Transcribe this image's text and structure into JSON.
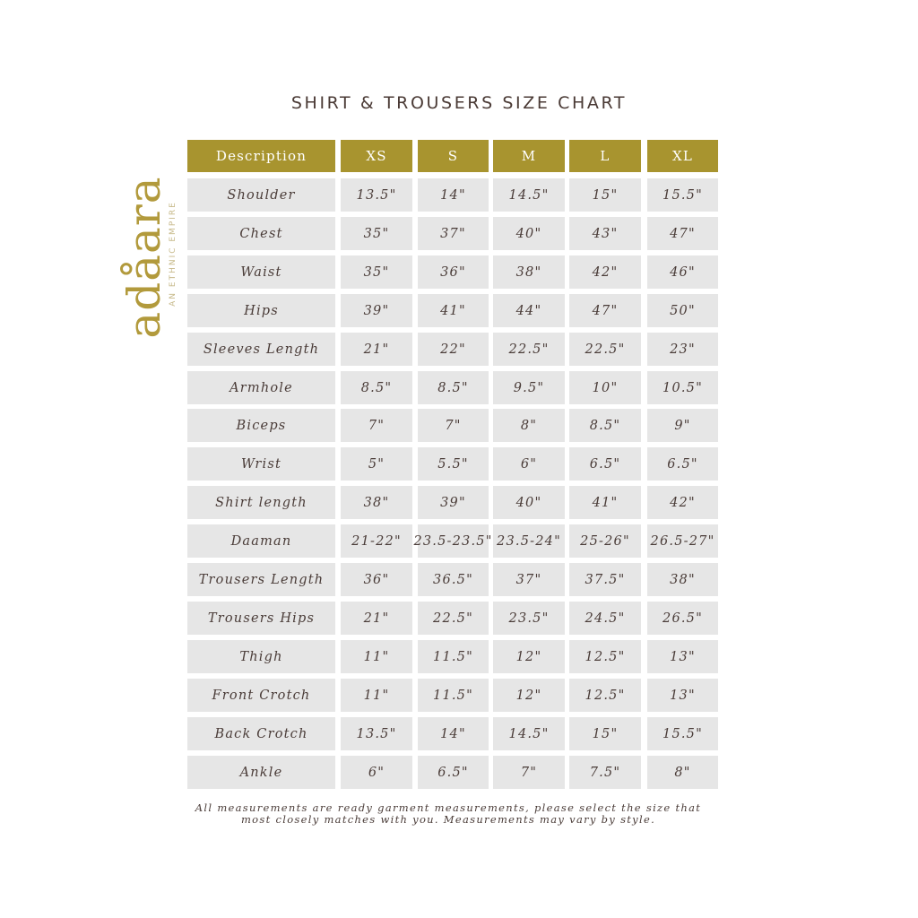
{
  "title": "SHIRT & TROUSERS SIZE CHART",
  "logo": {
    "word": "adåara",
    "tagline": "AN ETHNIC EMPIRE"
  },
  "colors": {
    "header_bg": "#a8942f",
    "cell_bg": "#e6e6e6",
    "text": "#4a3c38",
    "logo": "#b29a3c"
  },
  "table": {
    "headers": [
      "Description",
      "XS",
      "S",
      "M",
      "L",
      "XL"
    ],
    "rows": [
      [
        "Shoulder",
        "13.5\"",
        "14\"",
        "14.5\"",
        "15\"",
        "15.5\""
      ],
      [
        "Chest",
        "35\"",
        "37\"",
        "40\"",
        "43\"",
        "47\""
      ],
      [
        "Waist",
        "35\"",
        "36\"",
        "38\"",
        "42\"",
        "46\""
      ],
      [
        "Hips",
        "39\"",
        "41\"",
        "44\"",
        "47\"",
        "50\""
      ],
      [
        "Sleeves Length",
        "21\"",
        "22\"",
        "22.5\"",
        "22.5\"",
        "23\""
      ],
      [
        "Armhole",
        "8.5\"",
        "8.5\"",
        "9.5\"",
        "10\"",
        "10.5\""
      ],
      [
        "Biceps",
        "7\"",
        "7\"",
        "8\"",
        "8.5\"",
        "9\""
      ],
      [
        "Wrist",
        "5\"",
        "5.5\"",
        "6\"",
        "6.5\"",
        "6.5\""
      ],
      [
        "Shirt length",
        "38\"",
        "39\"",
        "40\"",
        "41\"",
        "42\""
      ],
      [
        "Daaman",
        "21-22\"",
        "23.5-23.5\"",
        "23.5-24\"",
        "25-26\"",
        "26.5-27\""
      ],
      [
        "Trousers Length",
        "36\"",
        "36.5\"",
        "37\"",
        "37.5\"",
        "38\""
      ],
      [
        "Trousers Hips",
        "21\"",
        "22.5\"",
        "23.5\"",
        "24.5\"",
        "26.5\""
      ],
      [
        "Thigh",
        "11\"",
        "11.5\"",
        "12\"",
        "12.5\"",
        "13\""
      ],
      [
        "Front Crotch",
        "11\"",
        "11.5\"",
        "12\"",
        "12.5\"",
        "13\""
      ],
      [
        "Back Crotch",
        "13.5\"",
        "14\"",
        "14.5\"",
        "15\"",
        "15.5\""
      ],
      [
        "Ankle",
        "6\"",
        "6.5\"",
        "7\"",
        "7.5\"",
        "8\""
      ]
    ]
  },
  "note": "All measurements are ready garment measurements, please select the size that most closely matches with you. Measurements may vary by style."
}
